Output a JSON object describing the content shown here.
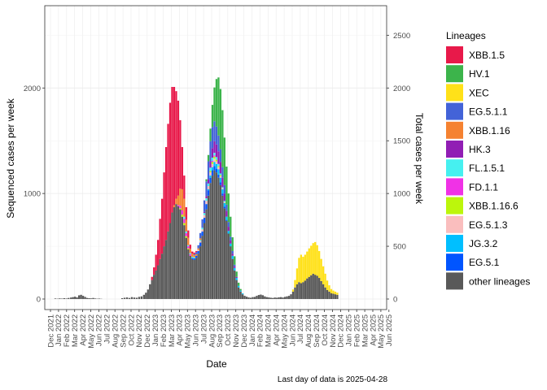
{
  "chart_data": {
    "type": "bar",
    "stacked": true,
    "xlabel": "Date",
    "ylabel": "Sequenced cases per week",
    "y2label": "Total cases per week",
    "caption": "Last day of data is 2025-04-28",
    "ylim": [
      -100,
      2780
    ],
    "yticks": [
      0,
      1000,
      2000
    ],
    "y2lim_scaled": [
      0,
      2700
    ],
    "y2ticks": [
      0,
      500,
      1000,
      1500,
      2000,
      2500
    ],
    "grid": true,
    "legend_position": "right",
    "legend_title": "Lineages",
    "x_tick_labels": [
      "Dec 2021",
      "Jan 2022",
      "Feb 2022",
      "Mar 2022",
      "Apr 2022",
      "May 2022",
      "Jun 2022",
      "Jul 2022",
      "Aug 2022",
      "Sep 2022",
      "Oct 2022",
      "Nov 2022",
      "Dec 2022",
      "Jan 2023",
      "Feb 2023",
      "Mar 2023",
      "Apr 2023",
      "May 2023",
      "Jun 2023",
      "Jul 2023",
      "Aug 2023",
      "Sep 2023",
      "Oct 2023",
      "Nov 2023",
      "Dec 2023",
      "Jan 2024",
      "Feb 2024",
      "Mar 2024",
      "Apr 2024",
      "May 2024",
      "Jun 2024",
      "Jul 2024",
      "Aug 2024",
      "Sep 2024",
      "Oct 2024",
      "Nov 2024",
      "Dec 2024",
      "Jan 2025",
      "Feb 2025",
      "Mar 2025",
      "Apr 2025",
      "May 2025",
      "Jun 2025"
    ],
    "lineages": [
      {
        "name": "XBB.1.5",
        "color": "#E8194A"
      },
      {
        "name": "HV.1",
        "color": "#3CB44B"
      },
      {
        "name": "XEC",
        "color": "#FFE119"
      },
      {
        "name": "EG.5.1.1",
        "color": "#4363D8"
      },
      {
        "name": "XBB.1.16",
        "color": "#F58231"
      },
      {
        "name": "HK.3",
        "color": "#911EB4"
      },
      {
        "name": "FL.1.5.1",
        "color": "#46F0F0"
      },
      {
        "name": "FD.1.1",
        "color": "#F032E6"
      },
      {
        "name": "XBB.1.16.6",
        "color": "#BCF60C"
      },
      {
        "name": "EG.5.1.3",
        "color": "#FABEBE"
      },
      {
        "name": "JG.3.2",
        "color": "#00BFFF"
      },
      {
        "name": "EG.5.1",
        "color": "#0055FF"
      },
      {
        "name": "other lineages",
        "color": "#595959"
      }
    ],
    "weekly": [
      {
        "t": 0.6,
        "o": 5
      },
      {
        "t": 0.88,
        "o": 3
      },
      {
        "t": 1.15,
        "o": 6
      },
      {
        "t": 1.42,
        "o": 4
      },
      {
        "t": 1.7,
        "o": 8
      },
      {
        "t": 1.98,
        "o": 5
      },
      {
        "t": 2.25,
        "o": 10
      },
      {
        "t": 2.55,
        "o": 14
      },
      {
        "t": 2.8,
        "o": 18
      },
      {
        "t": 3.05,
        "o": 22
      },
      {
        "t": 3.3,
        "o": 15
      },
      {
        "t": 3.55,
        "o": 35
      },
      {
        "t": 3.8,
        "o": 40
      },
      {
        "t": 4.05,
        "o": 30
      },
      {
        "t": 4.3,
        "o": 20
      },
      {
        "t": 4.55,
        "o": 10
      },
      {
        "t": 4.8,
        "o": 8
      },
      {
        "t": 5.05,
        "o": 6
      },
      {
        "t": 5.3,
        "o": 10
      },
      {
        "t": 5.55,
        "o": 5
      },
      {
        "t": 5.8,
        "o": 3
      },
      {
        "t": 6.05,
        "o": 4
      },
      {
        "t": 6.3,
        "o": 2
      },
      {
        "t": 8.9,
        "o": 8
      },
      {
        "t": 9.2,
        "o": 12
      },
      {
        "t": 9.5,
        "o": 15
      },
      {
        "t": 9.8,
        "o": 10
      },
      {
        "t": 10.1,
        "o": 18
      },
      {
        "t": 10.4,
        "o": 14
      },
      {
        "t": 10.7,
        "o": 12
      },
      {
        "t": 11.0,
        "o": 20
      },
      {
        "t": 11.3,
        "o": 25
      },
      {
        "t": 11.6,
        "o": 40
      },
      {
        "t": 11.85,
        "o": 60
      },
      {
        "t": 12.1,
        "o": 90
      },
      {
        "t": 12.35,
        "o": 140
      },
      {
        "t": 12.6,
        "o": 180,
        "s": {
          "XBB.1.5": 30
        }
      },
      {
        "t": 12.85,
        "o": 230,
        "s": {
          "XBB.1.5": 70
        }
      },
      {
        "t": 13.1,
        "o": 270,
        "s": {
          "XBB.1.5": 150
        }
      },
      {
        "t": 13.35,
        "o": 320,
        "s": {
          "XBB.1.5": 240
        }
      },
      {
        "t": 13.6,
        "o": 380,
        "s": {
          "XBB.1.5": 380
        }
      },
      {
        "t": 13.85,
        "o": 430,
        "s": {
          "XBB.1.5": 520
        }
      },
      {
        "t": 14.1,
        "o": 500,
        "s": {
          "XBB.1.5": 700
        }
      },
      {
        "t": 14.35,
        "o": 560,
        "s": {
          "XBB.1.5": 880
        }
      },
      {
        "t": 14.6,
        "o": 640,
        "s": {
          "XBB.1.5": 1020
        }
      },
      {
        "t": 14.85,
        "o": 720,
        "s": {
          "XBB.1.5": 1140
        }
      },
      {
        "t": 15.1,
        "o": 820,
        "s": {
          "XBB.1.5": 1190
        }
      },
      {
        "t": 15.35,
        "o": 870,
        "s": {
          "XBB.1.5": 1120,
          "XBB.1.16": 20
        }
      },
      {
        "t": 15.6,
        "o": 900,
        "s": {
          "XBB.1.5": 1020,
          "XBB.1.16": 50
        }
      },
      {
        "t": 15.85,
        "o": 880,
        "s": {
          "XBB.1.5": 900,
          "XBB.1.16": 90,
          "FD.1.1": 10
        }
      },
      {
        "t": 16.1,
        "o": 850,
        "s": {
          "XBB.1.5": 650,
          "XBB.1.16": 160,
          "FD.1.1": 25,
          "XBB.1.16.6": 10
        }
      },
      {
        "t": 16.35,
        "o": 780,
        "s": {
          "XBB.1.5": 400,
          "XBB.1.16": 200,
          "FD.1.1": 40,
          "XBB.1.16.6": 20
        }
      },
      {
        "t": 16.6,
        "o": 700,
        "s": {
          "XBB.1.5": 220,
          "XBB.1.16": 170,
          "FD.1.1": 40,
          "FL.1.5.1": 20,
          "XBB.1.16.6": 20
        }
      },
      {
        "t": 16.85,
        "o": 580,
        "s": {
          "XBB.1.5": 120,
          "XBB.1.16": 110,
          "FD.1.1": 30,
          "FL.1.5.1": 15,
          "XBB.1.16.6": 15
        }
      },
      {
        "t": 17.1,
        "o": 470,
        "s": {
          "XBB.1.5": 70,
          "XBB.1.16": 70,
          "FD.1.1": 20,
          "FL.1.5.1": 10,
          "XBB.1.16.6": 10
        }
      },
      {
        "t": 17.35,
        "o": 410,
        "s": {
          "XBB.1.5": 40,
          "XBB.1.16": 40,
          "FD.1.1": 15,
          "FL.1.5.1": 10
        }
      },
      {
        "t": 17.6,
        "o": 380,
        "s": {
          "XBB.1.5": 20,
          "XBB.1.16": 30,
          "FL.1.5.1": 10,
          "EG.5.1": 10
        }
      },
      {
        "t": 17.85,
        "o": 370,
        "s": {
          "XBB.1.5": 15,
          "XBB.1.16": 20,
          "FL.1.5.1": 10,
          "EG.5.1": 15,
          "EG.5.1.1": 10
        }
      },
      {
        "t": 18.1,
        "o": 390,
        "s": {
          "XBB.1.5": 10,
          "XBB.1.16": 15,
          "EG.5.1": 20,
          "EG.5.1.1": 20
        }
      },
      {
        "t": 18.35,
        "o": 430,
        "s": {
          "XBB.1.16": 15,
          "EG.5.1": 25,
          "EG.5.1.1": 30,
          "EG.5.1.3": 10
        }
      },
      {
        "t": 18.6,
        "o": 500,
        "s": {
          "XBB.1.16": 15,
          "EG.5.1": 35,
          "EG.5.1.1": 50,
          "EG.5.1.3": 15,
          "FL.1.5.1": 10
        }
      },
      {
        "t": 18.85,
        "o": 600,
        "s": {
          "EG.5.1": 40,
          "EG.5.1.1": 80,
          "EG.5.1.3": 20,
          "FL.1.5.1": 15
        }
      },
      {
        "t": 19.1,
        "o": 720,
        "s": {
          "EG.5.1": 50,
          "EG.5.1.1": 110,
          "EG.5.1.3": 25,
          "FL.1.5.1": 20,
          "HK.3": 10
        }
      },
      {
        "t": 19.35,
        "o": 850,
        "s": {
          "EG.5.1": 50,
          "EG.5.1.1": 140,
          "EG.5.1.3": 30,
          "FL.1.5.1": 25,
          "HK.3": 20,
          "HV.1": 20
        }
      },
      {
        "t": 19.6,
        "o": 980,
        "s": {
          "EG.5.1": 50,
          "EG.5.1.1": 170,
          "EG.5.1.3": 30,
          "FL.1.5.1": 25,
          "HK.3": 40,
          "HV.1": 60,
          "JG.3.2": 10
        }
      },
      {
        "t": 19.85,
        "o": 1100,
        "s": {
          "EG.5.1": 50,
          "EG.5.1.1": 190,
          "EG.5.1.3": 30,
          "FL.1.5.1": 30,
          "HK.3": 60,
          "HV.1": 120,
          "JG.3.2": 20,
          "XBB.1.16.6": 15
        }
      },
      {
        "t": 20.1,
        "o": 1170,
        "s": {
          "EG.5.1": 50,
          "EG.5.1.1": 200,
          "EG.5.1.3": 30,
          "FL.1.5.1": 30,
          "HK.3": 90,
          "HV.1": 210,
          "JG.3.2": 30,
          "XBB.1.16.6": 20,
          "FD.1.1": 10
        }
      },
      {
        "t": 20.35,
        "o": 1220,
        "s": {
          "EG.5.1": 40,
          "EG.5.1.1": 190,
          "EG.5.1.3": 30,
          "FL.1.5.1": 25,
          "HK.3": 110,
          "HV.1": 320,
          "JG.3.2": 40,
          "XBB.1.16.6": 20,
          "FD.1.1": 10
        }
      },
      {
        "t": 20.6,
        "o": 1200,
        "s": {
          "EG.5.1": 35,
          "EG.5.1.1": 170,
          "EG.5.1.3": 25,
          "FL.1.5.1": 25,
          "HK.3": 120,
          "HV.1": 450,
          "JG.3.2": 45,
          "XBB.1.16.6": 15
        }
      },
      {
        "t": 20.85,
        "o": 1150,
        "s": {
          "EG.5.1": 30,
          "EG.5.1.1": 150,
          "EG.5.1.3": 20,
          "FL.1.5.1": 20,
          "HK.3": 120,
          "HV.1": 550,
          "JG.3.2": 50,
          "XBB.1.16.6": 10
        }
      },
      {
        "t": 21.1,
        "o": 1080,
        "s": {
          "EG.5.1": 25,
          "EG.5.1.1": 120,
          "EG.5.1.3": 15,
          "FL.1.5.1": 15,
          "HK.3": 110,
          "HV.1": 570,
          "JG.3.2": 45,
          "XBB.1.16.6": 10
        }
      },
      {
        "t": 21.35,
        "o": 980,
        "s": {
          "EG.5.1": 20,
          "EG.5.1.1": 100,
          "EG.5.1.3": 10,
          "FL.1.5.1": 10,
          "HK.3": 90,
          "HV.1": 540,
          "JG.3.2": 40
        }
      },
      {
        "t": 21.6,
        "o": 860,
        "s": {
          "EG.5.1": 15,
          "EG.5.1.1": 80,
          "EG.5.1.3": 10,
          "FL.1.5.1": 10,
          "HK.3": 70,
          "HV.1": 450,
          "JG.3.2": 35
        }
      },
      {
        "t": 21.85,
        "o": 740,
        "s": {
          "EG.5.1": 10,
          "EG.5.1.1": 60,
          "HK.3": 55,
          "HV.1": 360,
          "JG.3.2": 30
        }
      },
      {
        "t": 22.1,
        "o": 620,
        "s": {
          "EG.5.1.1": 45,
          "HK.3": 40,
          "HV.1": 270,
          "JG.3.2": 25
        }
      },
      {
        "t": 22.35,
        "o": 500,
        "s": {
          "EG.5.1.1": 35,
          "HK.3": 30,
          "HV.1": 190,
          "JG.3.2": 25
        }
      },
      {
        "t": 22.6,
        "o": 380,
        "s": {
          "EG.5.1.1": 25,
          "HK.3": 20,
          "HV.1": 130,
          "JG.3.2": 30
        }
      },
      {
        "t": 22.85,
        "o": 270,
        "s": {
          "EG.5.1.1": 15,
          "HK.3": 15,
          "HV.1": 80,
          "JG.3.2": 25
        }
      },
      {
        "t": 23.1,
        "o": 180,
        "s": {
          "HK.3": 10,
          "HV.1": 50,
          "JG.3.2": 20
        }
      },
      {
        "t": 23.35,
        "o": 110,
        "s": {
          "HV.1": 30,
          "JG.3.2": 15
        }
      },
      {
        "t": 23.6,
        "o": 70,
        "s": {
          "HV.1": 15,
          "JG.3.2": 10
        }
      },
      {
        "t": 23.85,
        "o": 45,
        "s": {
          "JG.3.2": 8
        }
      },
      {
        "t": 24.1,
        "o": 30
      },
      {
        "t": 24.35,
        "o": 22
      },
      {
        "t": 24.6,
        "o": 15
      },
      {
        "t": 24.85,
        "o": 12
      },
      {
        "t": 25.1,
        "o": 18
      },
      {
        "t": 25.35,
        "o": 20
      },
      {
        "t": 25.6,
        "o": 30
      },
      {
        "t": 25.85,
        "o": 38
      },
      {
        "t": 26.1,
        "o": 42
      },
      {
        "t": 26.35,
        "o": 36
      },
      {
        "t": 26.6,
        "o": 25
      },
      {
        "t": 26.85,
        "o": 18
      },
      {
        "t": 27.1,
        "o": 15
      },
      {
        "t": 27.35,
        "o": 12
      },
      {
        "t": 27.6,
        "o": 10
      },
      {
        "t": 27.85,
        "o": 14
      },
      {
        "t": 28.1,
        "o": 12
      },
      {
        "t": 28.35,
        "o": 16
      },
      {
        "t": 28.6,
        "o": 18
      },
      {
        "t": 28.85,
        "o": 14
      },
      {
        "t": 29.1,
        "o": 20
      },
      {
        "t": 29.35,
        "o": 25
      },
      {
        "t": 29.6,
        "o": 30
      },
      {
        "t": 29.85,
        "o": 45
      },
      {
        "t": 30.1,
        "o": 70,
        "s": {
          "XEC": 20
        }
      },
      {
        "t": 30.35,
        "o": 110,
        "s": {
          "XEC": 70
        }
      },
      {
        "t": 30.6,
        "o": 140,
        "s": {
          "XEC": 150
        }
      },
      {
        "t": 30.85,
        "o": 160,
        "s": {
          "XEC": 230
        }
      },
      {
        "t": 31.1,
        "o": 150,
        "s": {
          "XEC": 270
        }
      },
      {
        "t": 31.35,
        "o": 160,
        "s": {
          "XEC": 240
        }
      },
      {
        "t": 31.6,
        "o": 175,
        "s": {
          "XEC": 245
        }
      },
      {
        "t": 31.85,
        "o": 195,
        "s": {
          "XEC": 255
        }
      },
      {
        "t": 32.1,
        "o": 210,
        "s": {
          "XEC": 270
        }
      },
      {
        "t": 32.35,
        "o": 225,
        "s": {
          "XEC": 280
        }
      },
      {
        "t": 32.6,
        "o": 240,
        "s": {
          "XEC": 290
        }
      },
      {
        "t": 32.85,
        "o": 230,
        "s": {
          "XEC": 310
        }
      },
      {
        "t": 33.1,
        "o": 220,
        "s": {
          "XEC": 290
        }
      },
      {
        "t": 33.35,
        "o": 200,
        "s": {
          "XEC": 255
        }
      },
      {
        "t": 33.6,
        "o": 170,
        "s": {
          "XEC": 210
        }
      },
      {
        "t": 33.85,
        "o": 140,
        "s": {
          "XEC": 170
        }
      },
      {
        "t": 34.1,
        "o": 110,
        "s": {
          "XEC": 130
        }
      },
      {
        "t": 34.35,
        "o": 85,
        "s": {
          "XEC": 90
        }
      },
      {
        "t": 34.6,
        "o": 70,
        "s": {
          "XEC": 60
        }
      },
      {
        "t": 34.85,
        "o": 55,
        "s": {
          "XEC": 40
        }
      },
      {
        "t": 35.1,
        "o": 50,
        "s": {
          "XEC": 30
        }
      },
      {
        "t": 35.35,
        "o": 45,
        "s": {
          "XEC": 25
        }
      },
      {
        "t": 35.6,
        "o": 40,
        "s": {
          "XEC": 20
        }
      }
    ],
    "_comment_t": "t = position in months from Dec 2021 (tick index units)"
  }
}
